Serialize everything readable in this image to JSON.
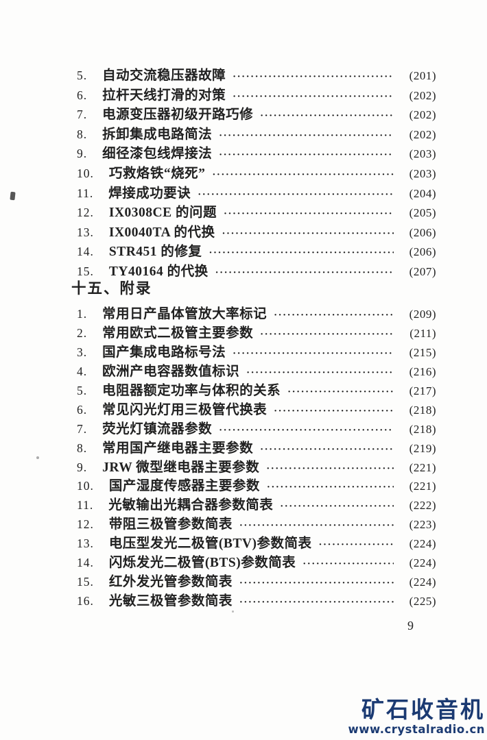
{
  "page": {
    "folio": "9"
  },
  "toc": {
    "section_header": "十五、附录",
    "chapter_items": [
      {
        "num": "5.",
        "title": "自动交流稳压器故障",
        "page": "(201)"
      },
      {
        "num": "6.",
        "title": "拉杆天线打滑的对策",
        "page": "(202)"
      },
      {
        "num": "7.",
        "title": "电源变压器初级开路巧修",
        "page": "(202)"
      },
      {
        "num": "8.",
        "title": "拆卸集成电路简法",
        "page": "(202)"
      },
      {
        "num": "9.",
        "title": "细径漆包线焊接法",
        "page": "(203)"
      },
      {
        "num": "10.",
        "title": "巧救烙铁“烧死”",
        "page": "(203)"
      },
      {
        "num": "11.",
        "title": "焊接成功要诀",
        "page": "(204)"
      },
      {
        "num": "12.",
        "title": "IX0308CE 的问题",
        "page": "(205)"
      },
      {
        "num": "13.",
        "title": "IX0040TA 的代换",
        "page": "(206)"
      },
      {
        "num": "14.",
        "title": "STR451 的修复",
        "page": "(206)"
      },
      {
        "num": "15.",
        "title": "TY40164 的代换",
        "page": "(207)"
      }
    ],
    "appendix_items": [
      {
        "num": "1.",
        "title": "常用日产晶体管放大率标记",
        "page": "(209)"
      },
      {
        "num": "2.",
        "title": "常用欧式二极管主要参数",
        "page": "(211)"
      },
      {
        "num": "3.",
        "title": "国产集成电路标号法",
        "page": "(215)"
      },
      {
        "num": "4.",
        "title": "欧洲产电容器数值标识",
        "page": "(216)"
      },
      {
        "num": "5.",
        "title": "电阻器额定功率与体积的关系",
        "page": "(217)"
      },
      {
        "num": "6.",
        "title": "常见闪光灯用三极管代换表",
        "page": "(218)"
      },
      {
        "num": "7.",
        "title": "荧光灯镇流器参数",
        "page": "(218)"
      },
      {
        "num": "8.",
        "title": "常用国产继电器主要参数",
        "page": "(219)"
      },
      {
        "num": "9.",
        "title": "JRW 微型继电器主要参数",
        "page": "(221)"
      },
      {
        "num": "10.",
        "title": "国产湿度传感器主要参数",
        "page": "(221)"
      },
      {
        "num": "11.",
        "title": "光敏输出光耦合器参数简表",
        "page": "(222)"
      },
      {
        "num": "12.",
        "title": "带阻三极管参数简表",
        "page": "(223)"
      },
      {
        "num": "13.",
        "title": "电压型发光二极管(BTV)参数简表",
        "page": "(224)"
      },
      {
        "num": "14.",
        "title": "闪烁发光二极管(BTS)参数简表",
        "page": "(224)"
      },
      {
        "num": "15.",
        "title": "红外发光管参数简表",
        "page": "(224)"
      },
      {
        "num": "16.",
        "title": "光敏三极管参数简表",
        "page": "(225)"
      }
    ]
  },
  "watermark": {
    "logo": "矿石收音机",
    "url": "www.crystalradio.cn",
    "color": "#1b3a72"
  }
}
